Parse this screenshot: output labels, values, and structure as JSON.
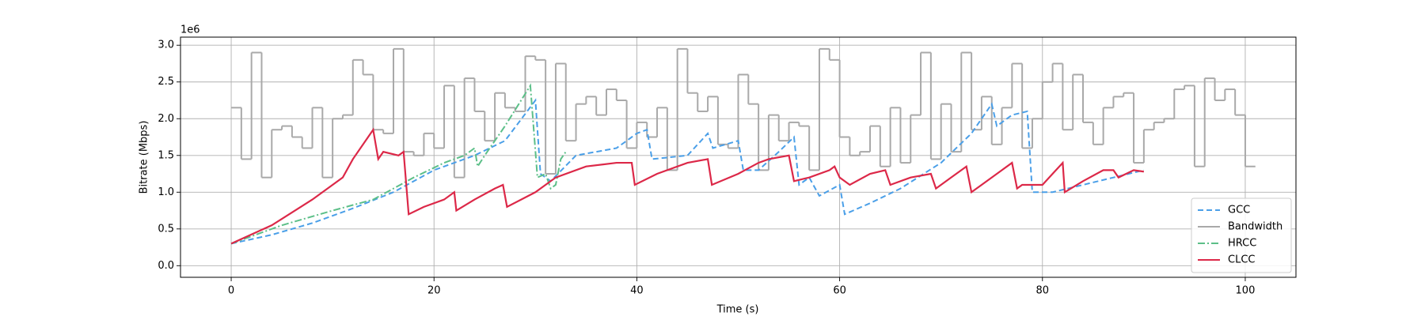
{
  "chart_data": {
    "type": "line",
    "x_label": "Time (s)",
    "y_label": "Bitrate (Mbps)",
    "y_offset_text": "1e6",
    "xlim": [
      -5,
      105
    ],
    "ylim": [
      -0.158,
      3.11
    ],
    "xticks": [
      0,
      20,
      40,
      60,
      80,
      100
    ],
    "yticks": [
      {
        "value": 0,
        "label": "0.0"
      },
      0.5,
      {
        "value": 1,
        "label": "1.0"
      },
      1.5,
      {
        "value": 2,
        "label": "2.0"
      },
      2.5,
      {
        "value": 3,
        "label": "3.0"
      }
    ],
    "grid": true,
    "legend_position": "lower right",
    "series": [
      {
        "name": "GCC",
        "color": "#4a9fe8",
        "linestyle": "dashed",
        "x": [
          0,
          4,
          8,
          12,
          16,
          20,
          24,
          27,
          30,
          30.5,
          31.5,
          34,
          38,
          40,
          41,
          41.5,
          45,
          47,
          47.5,
          50,
          50.5,
          52,
          54,
          55.5,
          56,
          57,
          58,
          60,
          60.5,
          63,
          66,
          70,
          73,
          75,
          75.5,
          77,
          78.5,
          79,
          81,
          84,
          87,
          90
        ],
        "values": [
          0.3,
          0.42,
          0.58,
          0.78,
          1.0,
          1.3,
          1.5,
          1.7,
          2.25,
          1.25,
          1.15,
          1.5,
          1.6,
          1.8,
          1.85,
          1.45,
          1.5,
          1.8,
          1.6,
          1.7,
          1.3,
          1.3,
          1.55,
          1.75,
          1.1,
          1.2,
          0.95,
          1.1,
          0.7,
          0.85,
          1.05,
          1.4,
          1.8,
          2.2,
          1.9,
          2.05,
          2.1,
          1.0,
          1.0,
          1.1,
          1.2,
          1.3
        ]
      },
      {
        "name": "Bandwidth",
        "color": "#a9a9a9",
        "linestyle": "solid",
        "step": "post",
        "x": [
          0,
          1,
          2,
          3,
          4,
          5,
          6,
          7,
          8,
          9,
          10,
          11,
          12,
          13,
          14,
          15,
          16,
          17,
          18,
          19,
          20,
          21,
          22,
          23,
          24,
          25,
          26,
          27,
          28,
          29,
          30,
          31,
          32,
          33,
          34,
          35,
          36,
          37,
          38,
          39,
          40,
          41,
          42,
          43,
          44,
          45,
          46,
          47,
          48,
          49,
          50,
          51,
          52,
          53,
          54,
          55,
          56,
          57,
          58,
          59,
          60,
          61,
          62,
          63,
          64,
          65,
          66,
          67,
          68,
          69,
          70,
          71,
          72,
          73,
          74,
          75,
          76,
          77,
          78,
          79,
          80,
          81,
          82,
          83,
          84,
          85,
          86,
          87,
          88,
          89,
          90,
          91,
          92,
          93,
          94,
          95,
          96,
          97,
          98,
          99,
          100
        ],
        "values": [
          2.15,
          1.45,
          2.9,
          1.2,
          1.85,
          1.9,
          1.75,
          1.6,
          2.15,
          1.2,
          2.0,
          2.05,
          2.8,
          2.6,
          1.85,
          1.8,
          2.95,
          1.55,
          1.5,
          1.8,
          1.6,
          2.45,
          1.2,
          2.55,
          2.1,
          1.7,
          2.35,
          2.15,
          2.1,
          2.85,
          2.8,
          1.25,
          2.75,
          1.7,
          2.2,
          2.3,
          2.05,
          2.4,
          2.25,
          1.6,
          1.95,
          1.75,
          2.15,
          1.3,
          2.95,
          2.35,
          2.1,
          2.3,
          1.65,
          1.6,
          2.6,
          2.2,
          1.3,
          2.05,
          1.7,
          1.95,
          1.9,
          1.3,
          2.95,
          2.8,
          1.75,
          1.5,
          1.55,
          1.9,
          1.35,
          2.15,
          1.4,
          2.05,
          2.9,
          1.45,
          2.2,
          1.55,
          2.9,
          1.85,
          2.3,
          1.65,
          2.15,
          2.75,
          1.6,
          2.0,
          2.5,
          2.75,
          1.85,
          2.6,
          1.95,
          1.65,
          2.15,
          2.3,
          2.35,
          1.4,
          1.85,
          1.95,
          2.0,
          2.4,
          2.45,
          1.35,
          2.55,
          2.25,
          2.4,
          2.05,
          1.35
        ]
      },
      {
        "name": "HRCC",
        "color": "#5cbf88",
        "linestyle": "dashdot",
        "x": [
          0,
          5,
          10,
          14,
          18,
          21,
          23,
          24,
          24.3,
          25,
          27,
          29.5,
          30.2,
          31,
          31.5,
          32,
          32.5,
          33
        ],
        "values": [
          0.3,
          0.55,
          0.75,
          0.9,
          1.2,
          1.4,
          1.5,
          1.6,
          1.35,
          1.5,
          1.9,
          2.45,
          1.2,
          1.25,
          1.05,
          1.1,
          1.45,
          1.55
        ]
      },
      {
        "name": "CLCC",
        "color": "#dc2848",
        "linestyle": "solid",
        "x": [
          0,
          4,
          8,
          11,
          12,
          13.5,
          14,
          14.5,
          15,
          16.5,
          17,
          17.5,
          19,
          21,
          22,
          22.2,
          24,
          26,
          26.8,
          27.2,
          30,
          32,
          35,
          38,
          39.5,
          39.8,
          42,
          45,
          47,
          47.4,
          50,
          52,
          53,
          55,
          55.5,
          57,
          59,
          59.5,
          60,
          61,
          63,
          64.5,
          65,
          67,
          69,
          69.5,
          71,
          72.5,
          73,
          74,
          76,
          77,
          77.5,
          78,
          80,
          81,
          82,
          82.2,
          84,
          86,
          87,
          87.5,
          89,
          90
        ],
        "values": [
          0.3,
          0.55,
          0.9,
          1.2,
          1.45,
          1.75,
          1.85,
          1.45,
          1.55,
          1.5,
          1.55,
          0.7,
          0.8,
          0.9,
          1.0,
          0.75,
          0.9,
          1.05,
          1.1,
          0.8,
          1.0,
          1.2,
          1.35,
          1.4,
          1.4,
          1.1,
          1.25,
          1.4,
          1.45,
          1.1,
          1.25,
          1.4,
          1.45,
          1.5,
          1.15,
          1.2,
          1.3,
          1.35,
          1.2,
          1.1,
          1.25,
          1.3,
          1.1,
          1.2,
          1.25,
          1.05,
          1.2,
          1.35,
          1.0,
          1.1,
          1.3,
          1.4,
          1.05,
          1.1,
          1.1,
          1.25,
          1.4,
          1.0,
          1.15,
          1.3,
          1.3,
          1.2,
          1.3,
          1.28
        ]
      }
    ]
  }
}
